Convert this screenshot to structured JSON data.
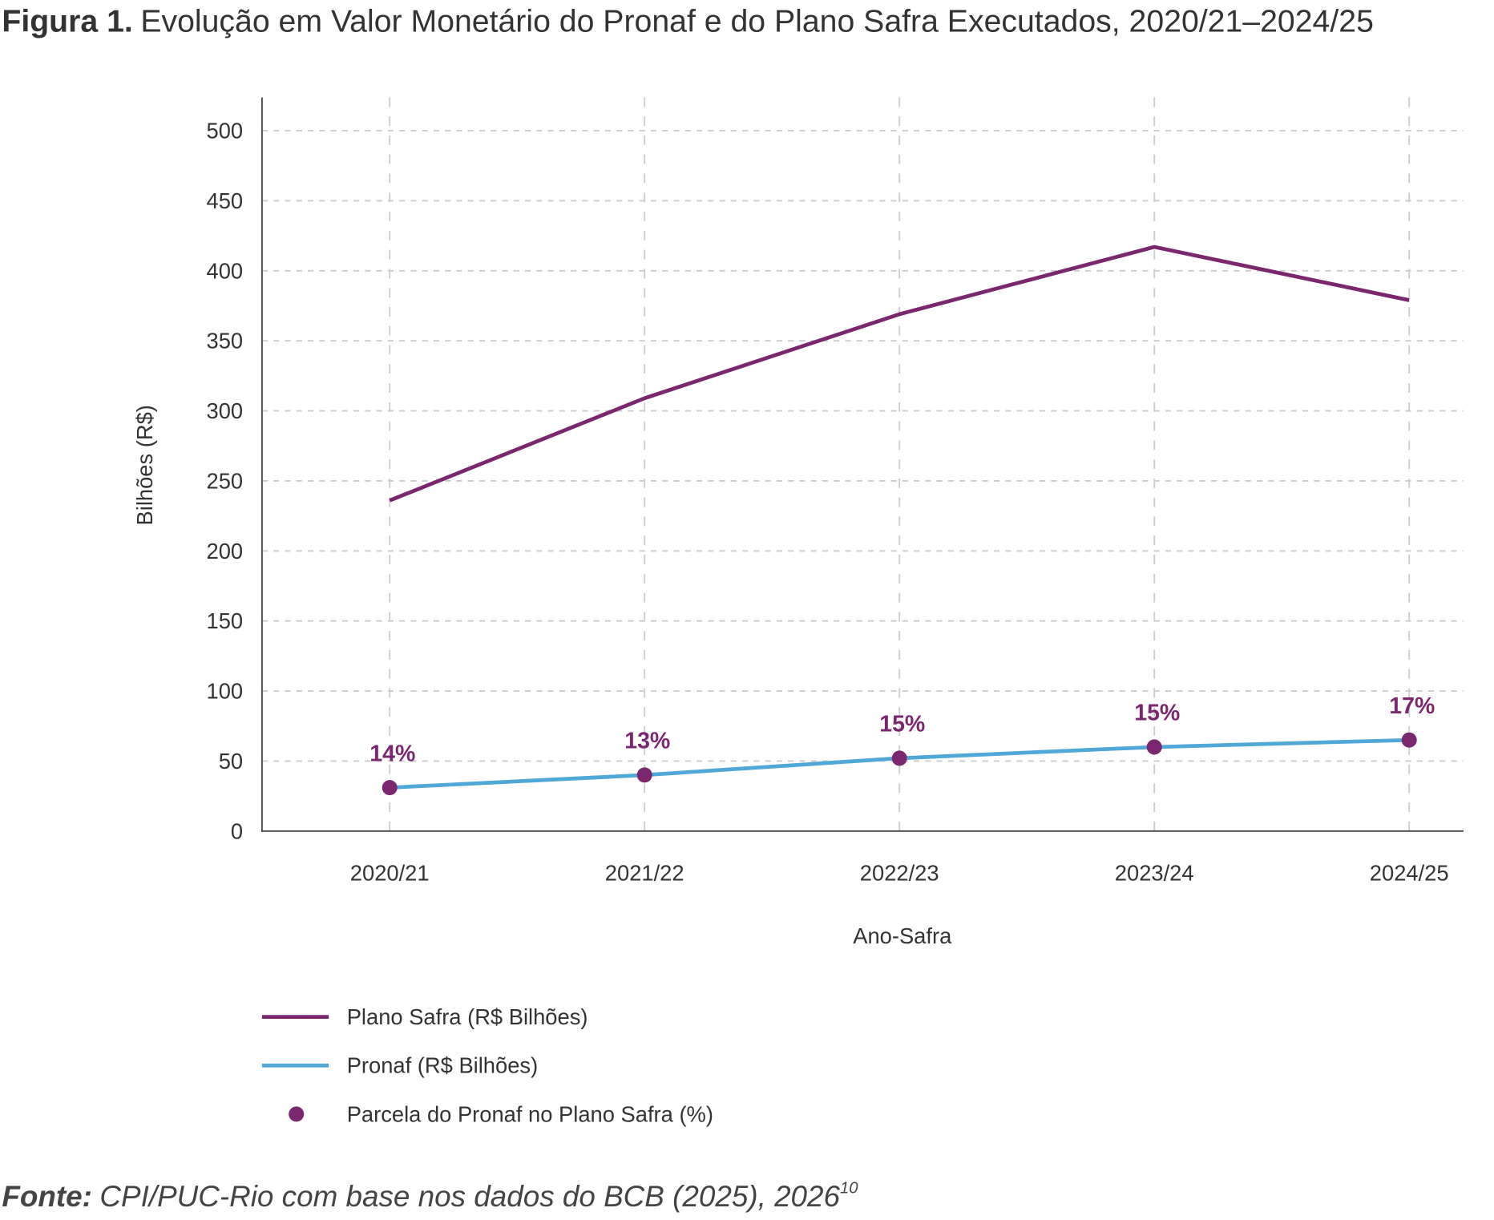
{
  "title": {
    "prefix": "Figura 1.",
    "text": "Evolução em Valor Monetário do Pronaf e do Plano Safra Executados, 2020/21–2024/25"
  },
  "source": {
    "label": "Fonte:",
    "text": "CPI/PUC-Rio com base nos dados do BCB (2025), 2026",
    "superscript": "10"
  },
  "chart_data": {
    "type": "line",
    "xlabel": "Ano-Safra",
    "ylabel": "Bilhões (R$)",
    "categories": [
      "2020/21",
      "2021/22",
      "2022/23",
      "2023/24",
      "2024/25"
    ],
    "ylim": [
      0,
      500
    ],
    "yticks": [
      "0",
      "50",
      "100",
      "150",
      "200",
      "250",
      "300",
      "350",
      "400",
      "450",
      "500"
    ],
    "grid": true,
    "legend_placement": "bottom-left",
    "series": [
      {
        "name": "Plano Safra (R$ Bilhões)",
        "color": "#7B2770",
        "values": [
          236,
          309,
          369,
          417,
          379
        ]
      },
      {
        "name": "Pronaf (R$ Bilhões)",
        "color": "#4FA8D5",
        "values": [
          31,
          40,
          52,
          60,
          65
        ]
      }
    ],
    "markers": {
      "name": "Parcela do Pronaf no Plano Safra (%)",
      "color": "#7B2770",
      "on_series": "Pronaf (R$ Bilhões)",
      "labels": [
        "14%",
        "13%",
        "15%",
        "15%",
        "17%"
      ]
    }
  }
}
